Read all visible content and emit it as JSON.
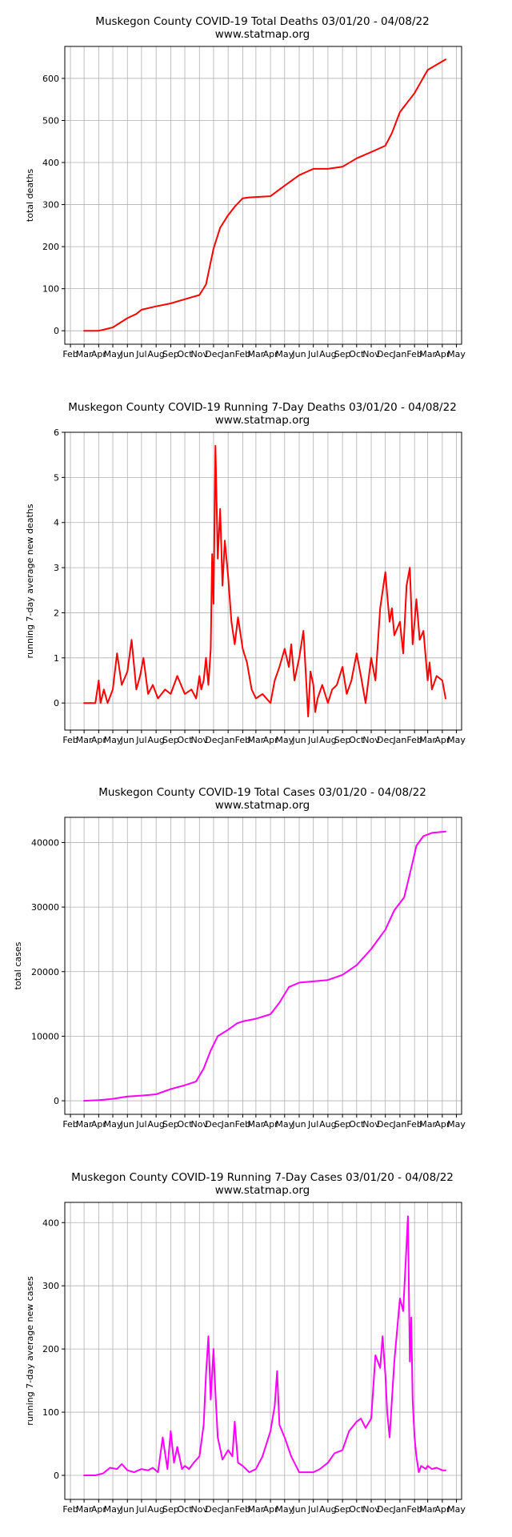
{
  "chart_data": [
    {
      "type": "line",
      "title": "Muskegon County COVID-19 Total Deaths 03/01/20 - 04/08/22",
      "subtitle": "www.statmap.org",
      "ylabel": "total deaths",
      "ylim": [
        -32,
        676
      ],
      "yticks": [
        0,
        100,
        200,
        300,
        400,
        500,
        600
      ],
      "grid": true,
      "color": "#ff0000",
      "xtick_labels": [
        "Feb",
        "Mar",
        "Apr",
        "May",
        "Jun",
        "Jul",
        "Aug",
        "Sep",
        "Oct",
        "Nov",
        "Dec",
        "Jan",
        "Feb",
        "Mar",
        "Apr",
        "May",
        "Jun",
        "Jul",
        "Aug",
        "Sep",
        "Oct",
        "Nov",
        "Dec",
        "Jan",
        "Feb",
        "Mar",
        "Apr",
        "May"
      ],
      "x": [
        "2020-03-01",
        "2020-04-01",
        "2020-04-20",
        "2020-05-01",
        "2020-06-01",
        "2020-06-20",
        "2020-07-01",
        "2020-08-01",
        "2020-09-01",
        "2020-10-01",
        "2020-11-01",
        "2020-11-15",
        "2020-12-01",
        "2020-12-15",
        "2021-01-01",
        "2021-01-15",
        "2021-02-01",
        "2021-02-15",
        "2021-03-01",
        "2021-04-01",
        "2021-05-01",
        "2021-06-01",
        "2021-07-01",
        "2021-08-01",
        "2021-09-01",
        "2021-10-01",
        "2021-11-01",
        "2021-12-01",
        "2021-12-15",
        "2022-01-01",
        "2022-02-01",
        "2022-03-01",
        "2022-04-08"
      ],
      "y": [
        0,
        0,
        5,
        8,
        30,
        40,
        50,
        58,
        65,
        75,
        85,
        110,
        195,
        245,
        275,
        295,
        315,
        317,
        318,
        320,
        345,
        370,
        385,
        385,
        390,
        410,
        425,
        440,
        470,
        520,
        565,
        620,
        645
      ]
    },
    {
      "type": "line",
      "title": "Muskegon County COVID-19 Running 7-Day Deaths 03/01/20 - 04/08/22",
      "subtitle": "www.statmap.org",
      "ylabel": "running 7-day average new deaths",
      "ylim": [
        -0.6,
        6
      ],
      "yticks": [
        0,
        1,
        2,
        3,
        4,
        5,
        6
      ],
      "grid": true,
      "color": "#ff0000",
      "xtick_labels": [
        "Feb",
        "Mar",
        "Apr",
        "May",
        "Jun",
        "Jul",
        "Aug",
        "Sep",
        "Oct",
        "Nov",
        "Dec",
        "Jan",
        "Feb",
        "Mar",
        "Apr",
        "May",
        "Jun",
        "Jul",
        "Aug",
        "Sep",
        "Oct",
        "Nov",
        "Dec",
        "Jan",
        "Feb",
        "Mar",
        "Apr",
        "May"
      ],
      "x": [
        "2020-03-01",
        "2020-03-25",
        "2020-04-01",
        "2020-04-05",
        "2020-04-12",
        "2020-04-20",
        "2020-05-01",
        "2020-05-10",
        "2020-05-20",
        "2020-06-01",
        "2020-06-10",
        "2020-06-20",
        "2020-06-28",
        "2020-07-05",
        "2020-07-15",
        "2020-07-25",
        "2020-08-05",
        "2020-08-20",
        "2020-09-01",
        "2020-09-15",
        "2020-10-01",
        "2020-10-15",
        "2020-10-25",
        "2020-11-01",
        "2020-11-05",
        "2020-11-10",
        "2020-11-15",
        "2020-11-20",
        "2020-11-25",
        "2020-11-28",
        "2020-12-01",
        "2020-12-05",
        "2020-12-10",
        "2020-12-15",
        "2020-12-20",
        "2020-12-25",
        "2021-01-01",
        "2021-01-08",
        "2021-01-15",
        "2021-01-22",
        "2021-02-01",
        "2021-02-10",
        "2021-02-20",
        "2021-03-01",
        "2021-03-15",
        "2021-04-01",
        "2021-04-10",
        "2021-04-20",
        "2021-05-01",
        "2021-05-10",
        "2021-05-15",
        "2021-05-22",
        "2021-06-01",
        "2021-06-10",
        "2021-06-20",
        "2021-06-25",
        "2021-07-01",
        "2021-07-05",
        "2021-07-10",
        "2021-07-20",
        "2021-08-01",
        "2021-08-10",
        "2021-08-20",
        "2021-09-01",
        "2021-09-10",
        "2021-09-20",
        "2021-10-01",
        "2021-10-10",
        "2021-10-20",
        "2021-11-01",
        "2021-11-10",
        "2021-11-20",
        "2021-12-01",
        "2021-12-05",
        "2021-12-10",
        "2021-12-15",
        "2021-12-20",
        "2022-01-01",
        "2022-01-08",
        "2022-01-15",
        "2022-01-22",
        "2022-01-28",
        "2022-02-01",
        "2022-02-05",
        "2022-02-12",
        "2022-02-20",
        "2022-03-01",
        "2022-03-05",
        "2022-03-10",
        "2022-03-20",
        "2022-04-01",
        "2022-04-08"
      ],
      "y": [
        0,
        0,
        0.5,
        0,
        0.3,
        0,
        0.3,
        1.1,
        0.4,
        0.7,
        1.4,
        0.3,
        0.6,
        1.0,
        0.2,
        0.4,
        0.1,
        0.3,
        0.2,
        0.6,
        0.2,
        0.3,
        0.1,
        0.6,
        0.3,
        0.5,
        1.0,
        0.4,
        1.2,
        3.3,
        2.2,
        5.7,
        3.2,
        4.3,
        2.6,
        3.6,
        2.8,
        1.8,
        1.3,
        1.9,
        1.2,
        0.9,
        0.3,
        0.1,
        0.2,
        0,
        0.5,
        0.8,
        1.2,
        0.8,
        1.3,
        0.5,
        1.0,
        1.6,
        -0.3,
        0.7,
        0.4,
        -0.2,
        0.1,
        0.4,
        0.0,
        0.3,
        0.4,
        0.8,
        0.2,
        0.5,
        1.1,
        0.6,
        0.0,
        1.0,
        0.5,
        2.1,
        2.9,
        2.4,
        1.8,
        2.1,
        1.5,
        1.8,
        1.1,
        2.6,
        3.0,
        1.3,
        1.8,
        2.3,
        1.4,
        1.6,
        0.5,
        0.9,
        0.3,
        0.6,
        0.5,
        0.1
      ]
    },
    {
      "type": "line",
      "title": "Muskegon County COVID-19 Total Cases 03/01/20 - 04/08/22",
      "subtitle": "www.statmap.org",
      "ylabel": "total cases",
      "ylim": [
        -2100,
        43900
      ],
      "yticks": [
        0,
        10000,
        20000,
        30000,
        40000
      ],
      "grid": true,
      "color": "#ff00ff",
      "xtick_labels": [
        "Feb",
        "Mar",
        "Apr",
        "May",
        "Jun",
        "Jul",
        "Aug",
        "Sep",
        "Oct",
        "Nov",
        "Dec",
        "Jan",
        "Feb",
        "Mar",
        "Apr",
        "May",
        "Jun",
        "Jul",
        "Aug",
        "Sep",
        "Oct",
        "Nov",
        "Dec",
        "Jan",
        "Feb",
        "Mar",
        "Apr",
        "May"
      ],
      "x": [
        "2020-03-01",
        "2020-04-01",
        "2020-05-01",
        "2020-06-01",
        "2020-07-01",
        "2020-08-01",
        "2020-09-01",
        "2020-10-01",
        "2020-10-25",
        "2020-11-10",
        "2020-11-25",
        "2020-12-10",
        "2021-01-01",
        "2021-01-20",
        "2021-02-01",
        "2021-03-01",
        "2021-04-01",
        "2021-04-20",
        "2021-05-10",
        "2021-06-01",
        "2021-07-01",
        "2021-08-01",
        "2021-09-01",
        "2021-10-01",
        "2021-11-01",
        "2021-12-01",
        "2021-12-20",
        "2022-01-10",
        "2022-01-25",
        "2022-02-05",
        "2022-02-20",
        "2022-03-10",
        "2022-04-08"
      ],
      "y": [
        0,
        100,
        300,
        650,
        800,
        1000,
        1800,
        2400,
        3000,
        5000,
        7800,
        10000,
        11000,
        12000,
        12300,
        12700,
        13400,
        15200,
        17600,
        18300,
        18500,
        18700,
        19500,
        21000,
        23500,
        26500,
        29500,
        31500,
        36000,
        39500,
        41000,
        41500,
        41700
      ]
    },
    {
      "type": "line",
      "title": "Muskegon County COVID-19 Running 7-Day Cases 03/01/20 - 04/08/22",
      "subtitle": "www.statmap.org",
      "ylabel": "running 7-day average new cases",
      "ylim": [
        -38,
        432
      ],
      "yticks": [
        0,
        100,
        200,
        300,
        400
      ],
      "grid": true,
      "color": "#ff00ff",
      "xtick_labels": [
        "Feb",
        "Mar",
        "Apr",
        "May",
        "Jun",
        "Jul",
        "Aug",
        "Sep",
        "Oct",
        "Nov",
        "Dec",
        "Jan",
        "Feb",
        "Mar",
        "Apr",
        "May",
        "Jun",
        "Jul",
        "Aug",
        "Sep",
        "Oct",
        "Nov",
        "Dec",
        "Jan",
        "Feb",
        "Mar",
        "Apr",
        "May"
      ],
      "x": [
        "2020-03-01",
        "2020-03-25",
        "2020-04-10",
        "2020-04-25",
        "2020-05-10",
        "2020-05-20",
        "2020-06-01",
        "2020-06-15",
        "2020-07-01",
        "2020-07-15",
        "2020-07-25",
        "2020-08-05",
        "2020-08-15",
        "2020-08-25",
        "2020-09-01",
        "2020-09-08",
        "2020-09-15",
        "2020-09-25",
        "2020-10-01",
        "2020-10-10",
        "2020-10-20",
        "2020-11-01",
        "2020-11-10",
        "2020-11-15",
        "2020-11-20",
        "2020-11-25",
        "2020-12-01",
        "2020-12-05",
        "2020-12-10",
        "2020-12-20",
        "2021-01-01",
        "2021-01-10",
        "2021-01-15",
        "2021-01-22",
        "2021-02-01",
        "2021-02-15",
        "2021-03-01",
        "2021-03-15",
        "2021-04-01",
        "2021-04-10",
        "2021-04-15",
        "2021-04-20",
        "2021-05-01",
        "2021-05-15",
        "2021-06-01",
        "2021-06-15",
        "2021-07-01",
        "2021-07-15",
        "2021-08-01",
        "2021-08-15",
        "2021-09-01",
        "2021-09-15",
        "2021-10-01",
        "2021-10-10",
        "2021-10-20",
        "2021-11-01",
        "2021-11-10",
        "2021-11-20",
        "2021-11-25",
        "2021-12-01",
        "2021-12-05",
        "2021-12-10",
        "2021-12-15",
        "2021-12-20",
        "2022-01-01",
        "2022-01-08",
        "2022-01-12",
        "2022-01-18",
        "2022-01-22",
        "2022-01-25",
        "2022-01-28",
        "2022-02-01",
        "2022-02-05",
        "2022-02-10",
        "2022-02-15",
        "2022-02-25",
        "2022-03-01",
        "2022-03-10",
        "2022-03-20",
        "2022-04-01",
        "2022-04-08"
      ],
      "y": [
        0,
        0,
        3,
        12,
        10,
        18,
        8,
        5,
        10,
        8,
        12,
        5,
        60,
        10,
        70,
        20,
        45,
        10,
        15,
        10,
        20,
        30,
        80,
        160,
        220,
        120,
        200,
        130,
        60,
        25,
        40,
        30,
        85,
        20,
        15,
        5,
        10,
        30,
        70,
        110,
        165,
        80,
        60,
        30,
        5,
        5,
        5,
        10,
        20,
        35,
        40,
        70,
        85,
        90,
        75,
        90,
        190,
        170,
        220,
        160,
        100,
        60,
        120,
        180,
        280,
        260,
        320,
        410,
        180,
        250,
        120,
        60,
        30,
        5,
        15,
        10,
        15,
        10,
        12,
        8,
        8
      ]
    }
  ]
}
